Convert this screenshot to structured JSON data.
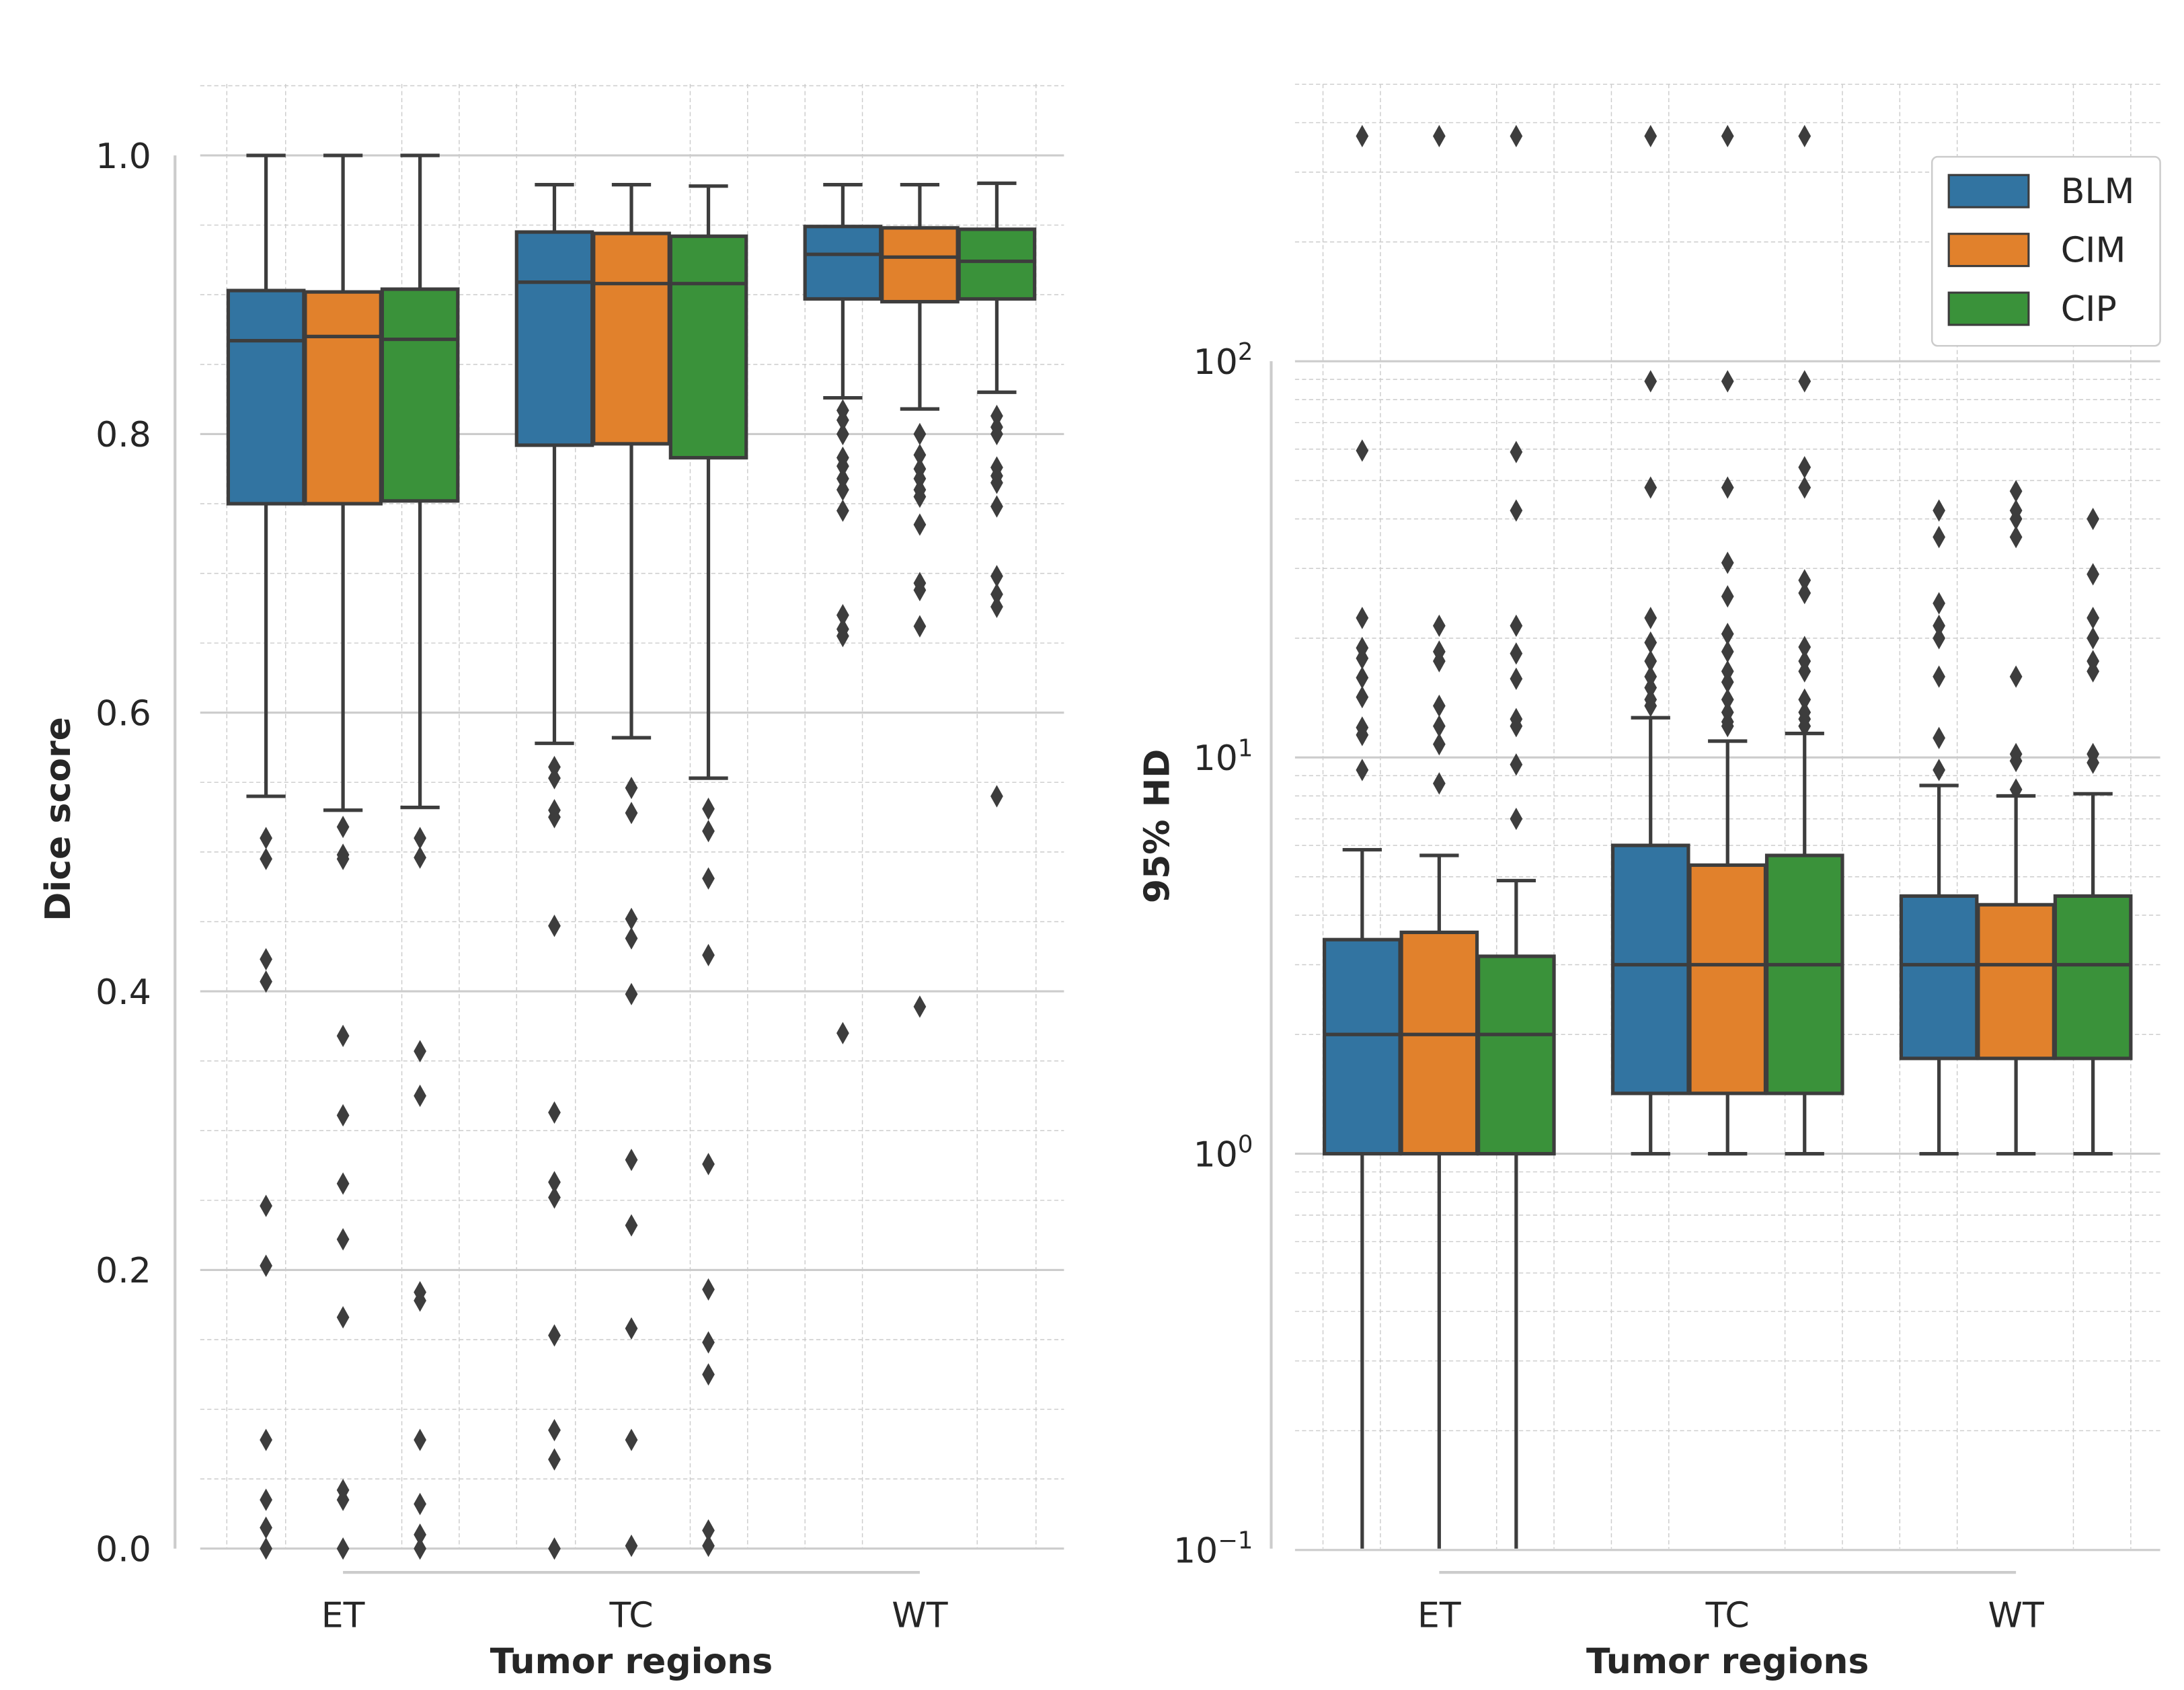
{
  "chart_data": [
    {
      "type": "box",
      "xlabel": "Tumor regions",
      "ylabel": "Dice score",
      "categories": [
        "ET",
        "TC",
        "WT"
      ],
      "ylim": [
        0,
        1
      ],
      "yticks": [
        0.0,
        0.2,
        0.4,
        0.6,
        0.8,
        1.0
      ],
      "ytick_labels": [
        "0.0",
        "0.2",
        "0.4",
        "0.6",
        "0.8",
        "1.0"
      ],
      "grid": true,
      "series": [
        {
          "name": "BLM",
          "boxes": [
            {
              "whislo": 0.54,
              "q1": 0.75,
              "med": 0.867,
              "q3": 0.903,
              "whishi": 1.0,
              "fliers": [
                0.51,
                0.495,
                0.423,
                0.407,
                0.246,
                0.203,
                0.078,
                0.035,
                0.015,
                0.0
              ]
            },
            {
              "whislo": 0.578,
              "q1": 0.792,
              "med": 0.909,
              "q3": 0.945,
              "whishi": 0.979,
              "fliers": [
                0.561,
                0.553,
                0.53,
                0.525,
                0.447,
                0.313,
                0.263,
                0.252,
                0.153,
                0.085,
                0.064,
                0.0
              ]
            },
            {
              "whislo": 0.826,
              "q1": 0.897,
              "med": 0.929,
              "q3": 0.949,
              "whishi": 0.979,
              "fliers": [
                0.817,
                0.81,
                0.8,
                0.783,
                0.777,
                0.768,
                0.76,
                0.745,
                0.67,
                0.66,
                0.655,
                0.37
              ]
            }
          ]
        },
        {
          "name": "CIM",
          "boxes": [
            {
              "whislo": 0.53,
              "q1": 0.75,
              "med": 0.87,
              "q3": 0.902,
              "whishi": 1.0,
              "fliers": [
                0.518,
                0.498,
                0.495,
                0.368,
                0.311,
                0.262,
                0.222,
                0.166,
                0.042,
                0.035,
                0.0
              ]
            },
            {
              "whislo": 0.582,
              "q1": 0.793,
              "med": 0.908,
              "q3": 0.944,
              "whishi": 0.979,
              "fliers": [
                0.546,
                0.528,
                0.452,
                0.438,
                0.398,
                0.279,
                0.232,
                0.158,
                0.078,
                0.002
              ]
            },
            {
              "whislo": 0.818,
              "q1": 0.895,
              "med": 0.927,
              "q3": 0.948,
              "whishi": 0.979,
              "fliers": [
                0.8,
                0.785,
                0.775,
                0.768,
                0.76,
                0.755,
                0.735,
                0.693,
                0.688,
                0.662,
                0.389
              ]
            }
          ]
        },
        {
          "name": "CIP",
          "boxes": [
            {
              "whislo": 0.532,
              "q1": 0.752,
              "med": 0.868,
              "q3": 0.904,
              "whishi": 1.0,
              "fliers": [
                0.51,
                0.496,
                0.357,
                0.325,
                0.184,
                0.178,
                0.078,
                0.032,
                0.01,
                0.0
              ]
            },
            {
              "whislo": 0.553,
              "q1": 0.783,
              "med": 0.908,
              "q3": 0.942,
              "whishi": 0.978,
              "fliers": [
                0.531,
                0.515,
                0.481,
                0.426,
                0.276,
                0.186,
                0.148,
                0.125,
                0.013,
                0.002
              ]
            },
            {
              "whislo": 0.83,
              "q1": 0.897,
              "med": 0.924,
              "q3": 0.947,
              "whishi": 0.98,
              "fliers": [
                0.813,
                0.805,
                0.8,
                0.776,
                0.77,
                0.765,
                0.748,
                0.698,
                0.685,
                0.676,
                0.54
              ]
            }
          ]
        }
      ]
    },
    {
      "type": "box",
      "xlabel": "Tumor regions",
      "ylabel": "95% HD",
      "yscale": "log",
      "categories": [
        "ET",
        "TC",
        "WT"
      ],
      "ylim": [
        0.1,
        500
      ],
      "yticks": [
        0.1,
        1,
        10,
        100
      ],
      "ytick_labels": [
        {
          "base": "10",
          "exp": "−1"
        },
        {
          "base": "10",
          "exp": "0"
        },
        {
          "base": "10",
          "exp": "1"
        },
        {
          "base": "10",
          "exp": "2"
        }
      ],
      "grid": true,
      "legend": {
        "position": "top-right",
        "entries": [
          "BLM",
          "CIM",
          "CIP"
        ]
      },
      "series": [
        {
          "name": "BLM",
          "boxes": [
            {
              "whislo": 0.1,
              "q1": 1.0,
              "med": 2.0,
              "q3": 3.47,
              "whishi": 5.85,
              "fliers": [
                370,
                59.5,
                22.5,
                18.9,
                17.8,
                15.9,
                14.2,
                11.9,
                11.4,
                9.3
              ]
            },
            {
              "whislo": 1.0,
              "q1": 1.42,
              "med": 3.0,
              "q3": 6.0,
              "whishi": 12.6,
              "fliers": [
                370,
                89,
                48,
                22.5,
                19.5,
                17.5,
                16,
                15,
                14,
                13.5
              ]
            },
            {
              "whislo": 1.0,
              "q1": 1.74,
              "med": 3.0,
              "q3": 4.47,
              "whishi": 8.5,
              "fliers": [
                42,
                36,
                24.5,
                21.5,
                20,
                16,
                11.2,
                9.3
              ]
            }
          ]
        },
        {
          "name": "CIM",
          "boxes": [
            {
              "whislo": 0.1,
              "q1": 1.0,
              "med": 2.0,
              "q3": 3.62,
              "whishi": 5.66,
              "fliers": [
                370,
                21.5,
                18.5,
                17.5,
                13.5,
                12.0,
                10.8,
                8.6
              ]
            },
            {
              "whislo": 1.0,
              "q1": 1.42,
              "med": 3.0,
              "q3": 5.35,
              "whishi": 11.0,
              "fliers": [
                370,
                89,
                48,
                31,
                25.5,
                20.5,
                18.5,
                16.5,
                15.5,
                14,
                13,
                12.3,
                12
              ]
            },
            {
              "whislo": 1.0,
              "q1": 1.74,
              "med": 3.0,
              "q3": 4.25,
              "whishi": 8.0,
              "fliers": [
                47,
                42,
                40,
                36,
                16,
                10.2,
                9.8,
                8.3
              ]
            }
          ]
        },
        {
          "name": "CIP",
          "boxes": [
            {
              "whislo": 0.1,
              "q1": 1.0,
              "med": 2.0,
              "q3": 3.15,
              "whishi": 4.89,
              "fliers": [
                370,
                59,
                42,
                21.5,
                18.3,
                15.8,
                12.5,
                12.0,
                9.6,
                7.0
              ]
            },
            {
              "whislo": 1.0,
              "q1": 1.42,
              "med": 3.0,
              "q3": 5.66,
              "whishi": 11.5,
              "fliers": [
                370,
                89,
                54,
                48,
                28,
                26,
                19,
                17.5,
                16.5,
                14,
                13,
                12.5,
                12
              ]
            },
            {
              "whislo": 1.0,
              "q1": 1.74,
              "med": 3.0,
              "q3": 4.47,
              "whishi": 8.1,
              "fliers": [
                40,
                29,
                22.5,
                20,
                17.5,
                16.5,
                10.2,
                9.7
              ]
            }
          ]
        }
      ]
    }
  ],
  "colors": {
    "BLM": "#3274a1",
    "CIM": "#e1812c",
    "CIP": "#3a923a",
    "edge": "#3d3d3d",
    "grid": "#cccccc"
  }
}
